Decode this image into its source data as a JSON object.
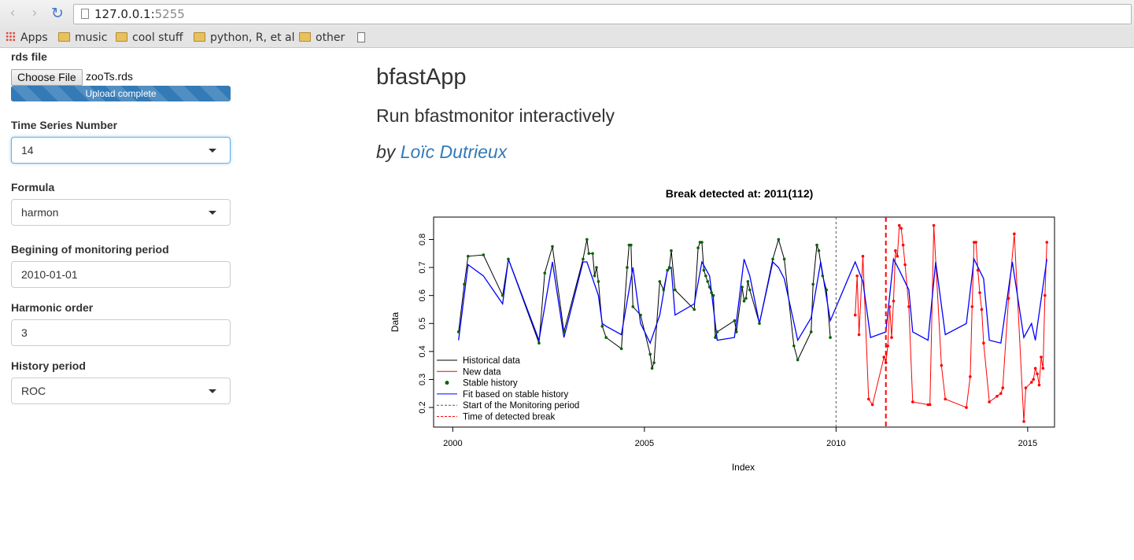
{
  "browser": {
    "url_host": "127.0.0.1:",
    "url_port": "5255",
    "bookmarks": [
      "Apps",
      "music",
      "cool stuff",
      "python, R, et al",
      "other"
    ]
  },
  "sidebar": {
    "rds_label": "rds file",
    "choose_file": "Choose File",
    "file_name": "zooTs.rds",
    "upload_status": "Upload complete",
    "upload_progress": 1.0,
    "ts_label": "Time Series Number",
    "ts_value": "14",
    "formula_label": "Formula",
    "formula_value": "harmon",
    "begin_label": "Begining of monitoring period",
    "begin_value": "2010-01-01",
    "harmonic_label": "Harmonic order",
    "harmonic_value": "3",
    "history_label": "History period",
    "history_value": "ROC"
  },
  "main": {
    "title": "bfastApp",
    "subtitle": "Run bfastmonitor interactively",
    "by": "by ",
    "author": "Loïc Dutrieux"
  },
  "chart_data": {
    "type": "line",
    "title": "Break detected at: 2011(112)",
    "xlabel": "Index",
    "ylabel": "Data",
    "xlim": [
      1999.5,
      2015.7
    ],
    "ylim": [
      0.13,
      0.88
    ],
    "x_ticks": [
      2000,
      2005,
      2010,
      2015
    ],
    "y_ticks": [
      0.2,
      0.3,
      0.4,
      0.5,
      0.6,
      0.7,
      0.8
    ],
    "monitoring_start": 2010,
    "break_time": 2011.3,
    "legend_position": "bottom-left",
    "legend": [
      "Historical data",
      "New data",
      "Stable history",
      "Fit based on stable history",
      "Start of the Monitoring period",
      "Time of detected break"
    ],
    "colors": {
      "history": "#000000",
      "new": "#ff0000",
      "stable": "#006400",
      "fit": "#0000ff",
      "start_line": "#555555",
      "break_line": "#ff0000"
    },
    "historical": {
      "x": [
        2000.15,
        2000.3,
        2000.4,
        2000.8,
        2001.3,
        2001.45,
        2002.25,
        2002.4,
        2002.6,
        2002.9,
        2003.4,
        2003.5,
        2003.55,
        2003.65,
        2003.7,
        2003.75,
        2003.8,
        2003.9,
        2004.0,
        2004.4,
        2004.55,
        2004.6,
        2004.65,
        2004.7,
        2004.9,
        2005.15,
        2005.2,
        2005.25,
        2005.4,
        2005.5,
        2005.6,
        2005.65,
        2005.7,
        2005.8,
        2006.3,
        2006.4,
        2006.45,
        2006.5,
        2006.55,
        2006.6,
        2006.65,
        2006.7,
        2006.75,
        2006.8,
        2006.85,
        2006.9,
        2007.35,
        2007.4,
        2007.55,
        2007.6,
        2007.65,
        2007.7,
        2007.75,
        2008.0,
        2008.35,
        2008.5,
        2008.65,
        2008.9,
        2009.0,
        2009.35,
        2009.4,
        2009.5,
        2009.55,
        2009.65,
        2009.75,
        2009.85
      ],
      "y": [
        0.47,
        0.64,
        0.74,
        0.745,
        0.6,
        0.73,
        0.43,
        0.68,
        0.775,
        0.47,
        0.73,
        0.8,
        0.75,
        0.75,
        0.67,
        0.7,
        0.65,
        0.49,
        0.45,
        0.41,
        0.7,
        0.78,
        0.78,
        0.56,
        0.53,
        0.39,
        0.34,
        0.36,
        0.65,
        0.62,
        0.69,
        0.7,
        0.76,
        0.62,
        0.55,
        0.77,
        0.79,
        0.79,
        0.69,
        0.67,
        0.65,
        0.63,
        0.61,
        0.6,
        0.45,
        0.47,
        0.51,
        0.47,
        0.63,
        0.58,
        0.59,
        0.65,
        0.62,
        0.5,
        0.73,
        0.8,
        0.73,
        0.42,
        0.37,
        0.47,
        0.64,
        0.78,
        0.76,
        0.67,
        0.62,
        0.45
      ]
    },
    "new_data": {
      "x": [
        2010.5,
        2010.55,
        2010.6,
        2010.7,
        2010.85,
        2010.95,
        2011.25,
        2011.3,
        2011.35,
        2011.4,
        2011.45,
        2011.5,
        2011.55,
        2011.6,
        2011.65,
        2011.7,
        2011.75,
        2011.8,
        2011.9,
        2012.0,
        2012.4,
        2012.45,
        2012.55,
        2012.75,
        2012.85,
        2013.4,
        2013.5,
        2013.55,
        2013.6,
        2013.65,
        2013.7,
        2013.75,
        2013.8,
        2013.85,
        2014.0,
        2014.2,
        2014.3,
        2014.35,
        2014.5,
        2014.65,
        2014.9,
        2014.95,
        2015.1,
        2015.15,
        2015.2,
        2015.25,
        2015.3,
        2015.35,
        2015.4,
        2015.45,
        2015.5
      ],
      "y": [
        0.53,
        0.67,
        0.46,
        0.74,
        0.23,
        0.21,
        0.38,
        0.36,
        0.42,
        0.56,
        0.45,
        0.58,
        0.76,
        0.74,
        0.85,
        0.84,
        0.78,
        0.71,
        0.56,
        0.22,
        0.21,
        0.21,
        0.85,
        0.35,
        0.23,
        0.2,
        0.31,
        0.56,
        0.79,
        0.79,
        0.69,
        0.61,
        0.55,
        0.43,
        0.22,
        0.24,
        0.25,
        0.27,
        0.59,
        0.82,
        0.15,
        0.27,
        0.29,
        0.3,
        0.34,
        0.32,
        0.28,
        0.38,
        0.34,
        0.6,
        0.79
      ]
    },
    "fit": {
      "x": [
        2000.15,
        2000.4,
        2000.8,
        2001.3,
        2001.45,
        2002.25,
        2002.6,
        2002.9,
        2003.4,
        2003.5,
        2003.8,
        2003.9,
        2004.0,
        2004.4,
        2004.7,
        2004.9,
        2005.15,
        2005.4,
        2005.6,
        2005.7,
        2005.8,
        2006.3,
        2006.5,
        2006.7,
        2006.9,
        2007.35,
        2007.6,
        2007.75,
        2008.0,
        2008.35,
        2008.5,
        2008.65,
        2009.0,
        2009.35,
        2009.6,
        2009.85,
        2010.5,
        2010.7,
        2010.9,
        2011.3,
        2011.5,
        2011.65,
        2011.9,
        2012.0,
        2012.4,
        2012.6,
        2012.85,
        2013.4,
        2013.6,
        2013.85,
        2014.0,
        2014.3,
        2014.6,
        2014.9,
        2015.1,
        2015.2,
        2015.5
      ],
      "y": [
        0.44,
        0.71,
        0.67,
        0.57,
        0.73,
        0.44,
        0.72,
        0.45,
        0.72,
        0.72,
        0.6,
        0.5,
        0.49,
        0.46,
        0.7,
        0.5,
        0.43,
        0.53,
        0.69,
        0.7,
        0.53,
        0.57,
        0.72,
        0.67,
        0.44,
        0.45,
        0.73,
        0.67,
        0.5,
        0.72,
        0.7,
        0.66,
        0.44,
        0.52,
        0.72,
        0.51,
        0.72,
        0.65,
        0.45,
        0.47,
        0.73,
        0.69,
        0.62,
        0.47,
        0.44,
        0.72,
        0.46,
        0.5,
        0.73,
        0.66,
        0.44,
        0.43,
        0.72,
        0.45,
        0.5,
        0.44,
        0.73
      ]
    }
  }
}
